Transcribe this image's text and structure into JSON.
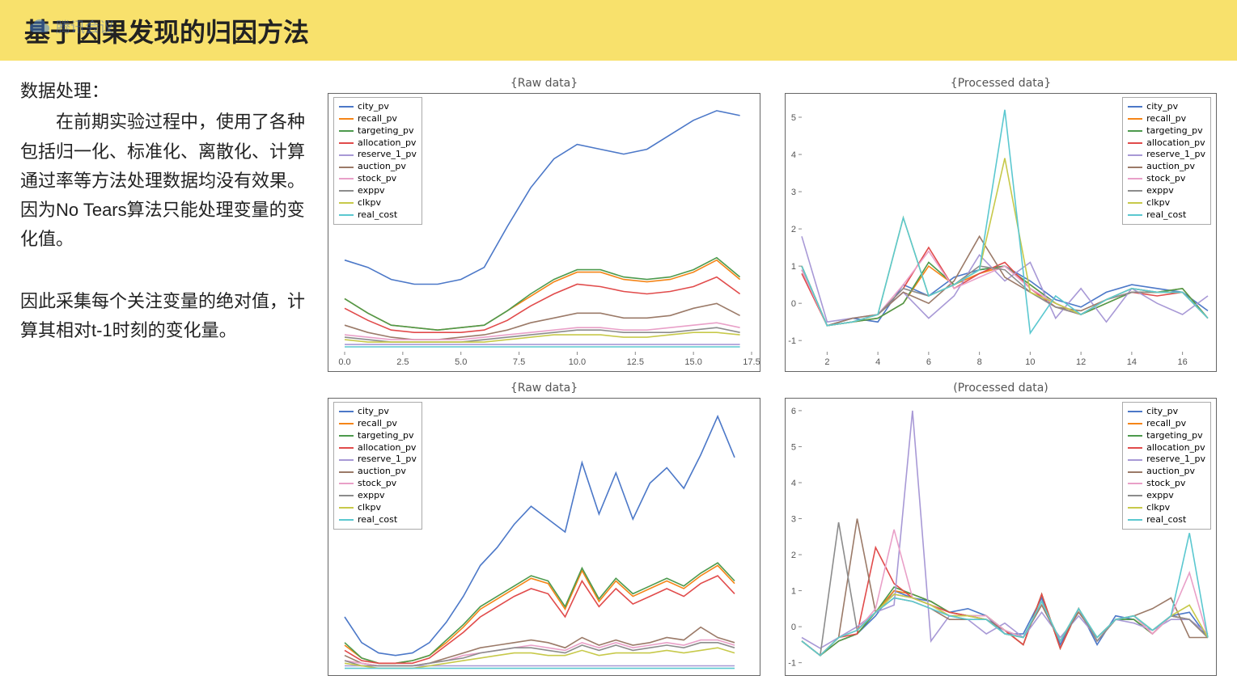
{
  "header": {
    "title": "基于因果发现的归因方法",
    "watermark_text": "腾讯会议",
    "watermark_icon_color": "#3d7dd8"
  },
  "text": {
    "label": "数据处理：",
    "para1": "在前期实验过程中，使用了各种包括归一化、标准化、离散化、计算通过率等方法处理数据均没有效果。因为No Tears算法只能处理变量的变化值。",
    "para2": "因此采集每个关注变量的绝对值，计算其相对t-1时刻的变化量。"
  },
  "series_meta": [
    {
      "key": "city_pv",
      "label": "city_pv",
      "color": "#4c78c8"
    },
    {
      "key": "recall_pv",
      "label": "recall_pv",
      "color": "#f58518"
    },
    {
      "key": "targeting_pv",
      "label": "targeting_pv",
      "color": "#4d9a4d"
    },
    {
      "key": "allocation_pv",
      "label": "allocation_pv",
      "color": "#e14b4b"
    },
    {
      "key": "reserve_1_pv",
      "label": "reserve_1_pv",
      "color": "#a899d6"
    },
    {
      "key": "auction_pv",
      "label": "auction_pv",
      "color": "#9b7a68"
    },
    {
      "key": "stock_pv",
      "label": "stock_pv",
      "color": "#e9a0c8"
    },
    {
      "key": "exppv",
      "label": "exppv",
      "color": "#8c8c8c"
    },
    {
      "key": "clkpv",
      "label": "clkpv",
      "color": "#c7c94a"
    },
    {
      "key": "real_cost",
      "label": "real_cost",
      "color": "#5bc8d0"
    }
  ],
  "charts": {
    "raw1": {
      "title": "{Raw data}",
      "legend_pos": "left",
      "xlim": [
        0,
        17.5
      ],
      "xticks": [
        0,
        2.5,
        5,
        7.5,
        10,
        12.5,
        15,
        17.5
      ],
      "xtick_labels": [
        "0.0",
        "2.5",
        "5.0",
        "7.5",
        "10.0",
        "12.5",
        "15.0",
        "17.5"
      ],
      "ylim": [
        0,
        1.05
      ],
      "yticks": [],
      "bottom_clip": false,
      "data": {
        "city_pv": [
          0.38,
          0.35,
          0.3,
          0.28,
          0.28,
          0.3,
          0.35,
          0.52,
          0.68,
          0.8,
          0.86,
          0.84,
          0.82,
          0.84,
          0.9,
          0.96,
          1.0,
          0.98
        ],
        "recall_pv": [
          0.22,
          0.16,
          0.11,
          0.1,
          0.09,
          0.1,
          0.11,
          0.17,
          0.23,
          0.29,
          0.33,
          0.33,
          0.3,
          0.29,
          0.3,
          0.33,
          0.38,
          0.3
        ],
        "targeting_pv": [
          0.22,
          0.16,
          0.11,
          0.1,
          0.09,
          0.1,
          0.11,
          0.17,
          0.24,
          0.3,
          0.34,
          0.34,
          0.31,
          0.3,
          0.31,
          0.34,
          0.39,
          0.31
        ],
        "allocation_pv": [
          0.18,
          0.13,
          0.09,
          0.08,
          0.08,
          0.08,
          0.09,
          0.13,
          0.19,
          0.24,
          0.28,
          0.27,
          0.25,
          0.24,
          0.25,
          0.27,
          0.31,
          0.24
        ],
        "reserve_1_pv": [
          0.03,
          0.03,
          0.03,
          0.03,
          0.03,
          0.03,
          0.03,
          0.03,
          0.03,
          0.03,
          0.03,
          0.03,
          0.03,
          0.03,
          0.03,
          0.03,
          0.03,
          0.03
        ],
        "auction_pv": [
          0.11,
          0.08,
          0.06,
          0.05,
          0.05,
          0.06,
          0.07,
          0.09,
          0.12,
          0.14,
          0.16,
          0.16,
          0.14,
          0.14,
          0.15,
          0.18,
          0.2,
          0.15
        ],
        "stock_pv": [
          0.07,
          0.06,
          0.05,
          0.05,
          0.05,
          0.05,
          0.06,
          0.07,
          0.08,
          0.09,
          0.1,
          0.1,
          0.09,
          0.09,
          0.1,
          0.11,
          0.12,
          0.1
        ],
        "exppv": [
          0.06,
          0.05,
          0.04,
          0.04,
          0.04,
          0.04,
          0.05,
          0.06,
          0.07,
          0.08,
          0.09,
          0.09,
          0.08,
          0.08,
          0.08,
          0.09,
          0.1,
          0.08
        ],
        "clkpv": [
          0.05,
          0.04,
          0.04,
          0.04,
          0.04,
          0.04,
          0.04,
          0.05,
          0.06,
          0.07,
          0.07,
          0.07,
          0.06,
          0.06,
          0.07,
          0.08,
          0.08,
          0.07
        ],
        "real_cost": [
          0.02,
          0.02,
          0.02,
          0.02,
          0.02,
          0.02,
          0.02,
          0.02,
          0.02,
          0.02,
          0.02,
          0.02,
          0.02,
          0.02,
          0.02,
          0.02,
          0.02,
          0.02
        ]
      },
      "x": [
        0,
        1,
        2,
        3,
        4,
        5,
        6,
        7,
        8,
        9,
        10,
        11,
        12,
        13,
        14,
        15,
        16,
        17
      ]
    },
    "proc1": {
      "title": "{Processed data}",
      "legend_pos": "right",
      "xlim": [
        1,
        17
      ],
      "xticks": [
        2,
        4,
        6,
        8,
        10,
        12,
        14,
        16
      ],
      "xtick_labels": [
        "2",
        "4",
        "6",
        "8",
        "10",
        "12",
        "14",
        "16"
      ],
      "ylim": [
        -1.3,
        5.5
      ],
      "yticks": [
        -1,
        0,
        1,
        2,
        3,
        4,
        5
      ],
      "bottom_clip": false,
      "data": {
        "city_pv": [
          0.9,
          -0.6,
          -0.4,
          -0.5,
          0.5,
          0.2,
          0.7,
          0.9,
          1.0,
          0.6,
          0.1,
          -0.1,
          0.3,
          0.5,
          0.4,
          0.3,
          -0.2
        ],
        "recall_pv": [
          1.0,
          -0.6,
          -0.5,
          -0.4,
          0.0,
          1.0,
          0.5,
          0.8,
          1.0,
          0.5,
          0.0,
          -0.3,
          0.0,
          0.3,
          0.3,
          0.4,
          -0.4
        ],
        "targeting_pv": [
          1.0,
          -0.6,
          -0.5,
          -0.4,
          0.0,
          1.1,
          0.5,
          0.9,
          1.0,
          0.5,
          0.0,
          -0.3,
          0.0,
          0.3,
          0.3,
          0.4,
          -0.4
        ],
        "allocation_pv": [
          0.8,
          -0.6,
          -0.5,
          -0.3,
          0.4,
          1.5,
          0.4,
          0.8,
          1.1,
          0.4,
          -0.1,
          -0.3,
          0.1,
          0.3,
          0.2,
          0.3,
          -0.4
        ],
        "reserve_1_pv": [
          1.8,
          -0.5,
          -0.4,
          -0.3,
          0.3,
          -0.4,
          0.2,
          1.3,
          0.6,
          1.1,
          -0.4,
          0.4,
          -0.5,
          0.4,
          0.0,
          -0.3,
          0.2
        ],
        "auction_pv": [
          1.0,
          -0.6,
          -0.4,
          -0.3,
          0.3,
          0.0,
          0.6,
          1.8,
          0.7,
          0.3,
          -0.1,
          -0.2,
          0.1,
          0.4,
          0.3,
          0.3,
          -0.4
        ],
        "stock_pv": [
          0.9,
          -0.6,
          -0.5,
          -0.3,
          0.5,
          1.4,
          0.4,
          0.7,
          1.0,
          0.4,
          0.0,
          -0.3,
          0.1,
          0.4,
          0.3,
          0.3,
          -0.4
        ],
        "exppv": [
          1.0,
          -0.6,
          -0.5,
          -0.3,
          0.4,
          0.2,
          0.5,
          1.0,
          0.9,
          0.3,
          -0.1,
          -0.3,
          0.1,
          0.3,
          0.3,
          0.3,
          -0.4
        ],
        "clkpv": [
          1.0,
          -0.6,
          -0.5,
          -0.3,
          2.3,
          0.2,
          0.5,
          0.9,
          3.9,
          0.3,
          0.0,
          -0.3,
          0.1,
          0.4,
          0.3,
          0.3,
          -0.4
        ],
        "real_cost": [
          1.0,
          -0.6,
          -0.5,
          -0.3,
          2.3,
          0.2,
          0.5,
          0.9,
          5.2,
          -0.8,
          0.2,
          -0.3,
          0.1,
          0.4,
          0.3,
          0.3,
          -0.4
        ]
      },
      "x": [
        1,
        2,
        3,
        4,
        5,
        6,
        7,
        8,
        9,
        10,
        11,
        12,
        13,
        14,
        15,
        16,
        17
      ]
    },
    "raw2": {
      "title": "{Raw data}",
      "legend_pos": "left",
      "xlim": [
        0,
        24
      ],
      "xticks": [
        0,
        5,
        10,
        15,
        20
      ],
      "xtick_labels": [
        "0",
        "5",
        "10",
        "15",
        "20"
      ],
      "ylim": [
        0,
        1.05
      ],
      "yticks": [],
      "bottom_clip": true,
      "data": {
        "city_pv": [
          0.22,
          0.12,
          0.08,
          0.07,
          0.08,
          0.12,
          0.2,
          0.3,
          0.42,
          0.49,
          0.58,
          0.65,
          0.6,
          0.55,
          0.82,
          0.62,
          0.78,
          0.6,
          0.74,
          0.8,
          0.72,
          0.85,
          1.0,
          0.84
        ],
        "recall_pv": [
          0.11,
          0.06,
          0.04,
          0.04,
          0.05,
          0.07,
          0.12,
          0.18,
          0.25,
          0.29,
          0.33,
          0.37,
          0.35,
          0.25,
          0.4,
          0.28,
          0.36,
          0.3,
          0.33,
          0.36,
          0.33,
          0.38,
          0.42,
          0.35
        ],
        "targeting_pv": [
          0.12,
          0.06,
          0.04,
          0.04,
          0.05,
          0.07,
          0.13,
          0.19,
          0.26,
          0.3,
          0.34,
          0.38,
          0.36,
          0.26,
          0.41,
          0.29,
          0.37,
          0.31,
          0.34,
          0.37,
          0.34,
          0.39,
          0.43,
          0.36
        ],
        "allocation_pv": [
          0.09,
          0.05,
          0.04,
          0.04,
          0.04,
          0.06,
          0.11,
          0.16,
          0.22,
          0.26,
          0.3,
          0.33,
          0.31,
          0.22,
          0.36,
          0.26,
          0.33,
          0.27,
          0.3,
          0.33,
          0.3,
          0.35,
          0.38,
          0.31
        ],
        "reserve_1_pv": [
          0.03,
          0.03,
          0.03,
          0.03,
          0.03,
          0.03,
          0.03,
          0.03,
          0.03,
          0.03,
          0.03,
          0.03,
          0.03,
          0.03,
          0.03,
          0.03,
          0.03,
          0.03,
          0.03,
          0.03,
          0.03,
          0.03,
          0.03,
          0.03
        ],
        "auction_pv": [
          0.07,
          0.04,
          0.03,
          0.03,
          0.03,
          0.04,
          0.06,
          0.08,
          0.1,
          0.11,
          0.12,
          0.13,
          0.12,
          0.1,
          0.14,
          0.11,
          0.13,
          0.11,
          0.12,
          0.14,
          0.13,
          0.18,
          0.14,
          0.12
        ],
        "stock_pv": [
          0.05,
          0.04,
          0.03,
          0.03,
          0.03,
          0.04,
          0.05,
          0.07,
          0.08,
          0.09,
          0.1,
          0.11,
          0.1,
          0.09,
          0.12,
          0.1,
          0.12,
          0.1,
          0.11,
          0.12,
          0.11,
          0.13,
          0.13,
          0.11
        ],
        "exppv": [
          0.05,
          0.03,
          0.03,
          0.03,
          0.03,
          0.04,
          0.05,
          0.06,
          0.08,
          0.09,
          0.1,
          0.1,
          0.09,
          0.08,
          0.11,
          0.09,
          0.11,
          0.09,
          0.1,
          0.11,
          0.1,
          0.12,
          0.12,
          0.1
        ],
        "clkpv": [
          0.04,
          0.03,
          0.02,
          0.02,
          0.02,
          0.03,
          0.04,
          0.05,
          0.06,
          0.07,
          0.08,
          0.08,
          0.07,
          0.07,
          0.09,
          0.07,
          0.08,
          0.08,
          0.08,
          0.09,
          0.08,
          0.09,
          0.1,
          0.08
        ],
        "real_cost": [
          0.02,
          0.02,
          0.02,
          0.02,
          0.02,
          0.02,
          0.02,
          0.02,
          0.02,
          0.02,
          0.02,
          0.02,
          0.02,
          0.02,
          0.02,
          0.02,
          0.02,
          0.02,
          0.02,
          0.02,
          0.02,
          0.02,
          0.02,
          0.02
        ]
      },
      "x": [
        0,
        1,
        2,
        3,
        4,
        5,
        6,
        7,
        8,
        9,
        10,
        11,
        12,
        13,
        14,
        15,
        16,
        17,
        18,
        19,
        20,
        21,
        22,
        23
      ]
    },
    "proc2": {
      "title": "(Processed data)",
      "legend_pos": "right",
      "xlim": [
        1,
        23
      ],
      "xticks": [],
      "xtick_labels": [],
      "ylim": [
        -1.3,
        6.2
      ],
      "yticks": [
        -1,
        0,
        1,
        2,
        3,
        4,
        5,
        6
      ],
      "bottom_clip": true,
      "data": {
        "city_pv": [
          -0.4,
          -0.8,
          -0.4,
          -0.2,
          0.3,
          1.0,
          0.8,
          0.7,
          0.4,
          0.5,
          0.3,
          -0.2,
          -0.2,
          0.8,
          -0.5,
          0.5,
          -0.5,
          0.3,
          0.2,
          -0.2,
          0.3,
          0.4,
          -0.3
        ],
        "recall_pv": [
          -0.4,
          -0.8,
          -0.4,
          -0.2,
          0.4,
          1.0,
          0.9,
          0.7,
          0.4,
          0.3,
          0.3,
          -0.1,
          -0.5,
          0.9,
          -0.6,
          0.5,
          -0.4,
          0.2,
          0.2,
          -0.2,
          0.3,
          0.2,
          -0.3
        ],
        "targeting_pv": [
          -0.4,
          -0.8,
          -0.4,
          -0.2,
          0.4,
          1.1,
          0.9,
          0.7,
          0.4,
          0.3,
          0.3,
          -0.1,
          -0.5,
          0.9,
          -0.6,
          0.5,
          -0.4,
          0.2,
          0.2,
          -0.2,
          0.3,
          0.2,
          -0.3
        ],
        "allocation_pv": [
          -0.4,
          -0.8,
          -0.3,
          -0.2,
          2.2,
          1.2,
          0.8,
          0.6,
          0.4,
          0.3,
          0.2,
          -0.1,
          -0.5,
          0.9,
          -0.6,
          0.5,
          -0.4,
          0.2,
          0.3,
          -0.2,
          0.3,
          0.2,
          -0.3
        ],
        "reserve_1_pv": [
          -0.3,
          -0.6,
          -0.3,
          0.0,
          0.4,
          0.6,
          6.0,
          -0.4,
          0.3,
          0.2,
          -0.2,
          0.1,
          -0.3,
          0.4,
          -0.3,
          0.3,
          -0.3,
          0.2,
          0.1,
          -0.1,
          0.2,
          0.2,
          -0.2
        ],
        "auction_pv": [
          -0.4,
          -0.8,
          -0.3,
          3.0,
          0.4,
          0.8,
          0.7,
          0.5,
          0.2,
          0.2,
          0.2,
          -0.1,
          -0.3,
          0.6,
          -0.4,
          0.4,
          -0.3,
          0.2,
          0.3,
          0.5,
          0.8,
          -0.3,
          -0.3
        ],
        "stock_pv": [
          -0.4,
          -0.8,
          -0.3,
          -0.1,
          0.5,
          2.7,
          0.8,
          0.6,
          0.3,
          0.3,
          0.3,
          -0.1,
          -0.3,
          0.7,
          -0.4,
          0.5,
          -0.4,
          0.2,
          0.3,
          -0.2,
          0.3,
          1.5,
          -0.3
        ],
        "exppv": [
          -0.4,
          -0.8,
          2.9,
          -0.1,
          0.4,
          0.9,
          0.8,
          0.6,
          0.3,
          0.3,
          0.2,
          -0.2,
          -0.3,
          0.7,
          -0.4,
          0.5,
          -0.4,
          0.2,
          0.3,
          -0.1,
          0.3,
          0.2,
          -0.3
        ],
        "clkpv": [
          -0.4,
          -0.8,
          -0.3,
          -0.1,
          0.4,
          0.9,
          0.8,
          0.6,
          0.3,
          0.3,
          0.2,
          -0.2,
          -0.3,
          0.7,
          -0.4,
          0.5,
          -0.3,
          0.2,
          0.3,
          -0.1,
          0.3,
          0.6,
          -0.3
        ],
        "real_cost": [
          -0.4,
          -0.8,
          -0.3,
          -0.1,
          0.4,
          0.8,
          0.7,
          0.5,
          0.3,
          0.2,
          0.2,
          -0.2,
          -0.3,
          0.7,
          -0.4,
          0.5,
          -0.3,
          0.2,
          0.3,
          -0.1,
          0.3,
          2.6,
          -0.3
        ]
      },
      "x": [
        1,
        2,
        3,
        4,
        5,
        6,
        7,
        8,
        9,
        10,
        11,
        12,
        13,
        14,
        15,
        16,
        17,
        18,
        19,
        20,
        21,
        22,
        23
      ]
    }
  },
  "chart_style": {
    "line_width": 1.6,
    "axis_color": "#666666",
    "tick_fontsize": 11,
    "legend_fontsize": 11,
    "title_fontsize": 14,
    "background": "#ffffff",
    "plot_margin": {
      "l": 20,
      "r": 10,
      "t": 6,
      "b": 24
    }
  }
}
